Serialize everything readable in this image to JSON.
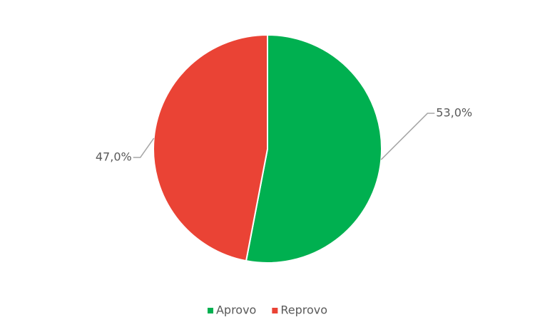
{
  "chart_data": {
    "type": "pie",
    "categories": [
      "Aprovo",
      "Reprovo"
    ],
    "values": [
      53,
      47
    ],
    "value_labels": [
      "53,0%",
      "47,0%"
    ],
    "colors": [
      "#00b050",
      "#ea4335"
    ],
    "legend": "bottom"
  }
}
